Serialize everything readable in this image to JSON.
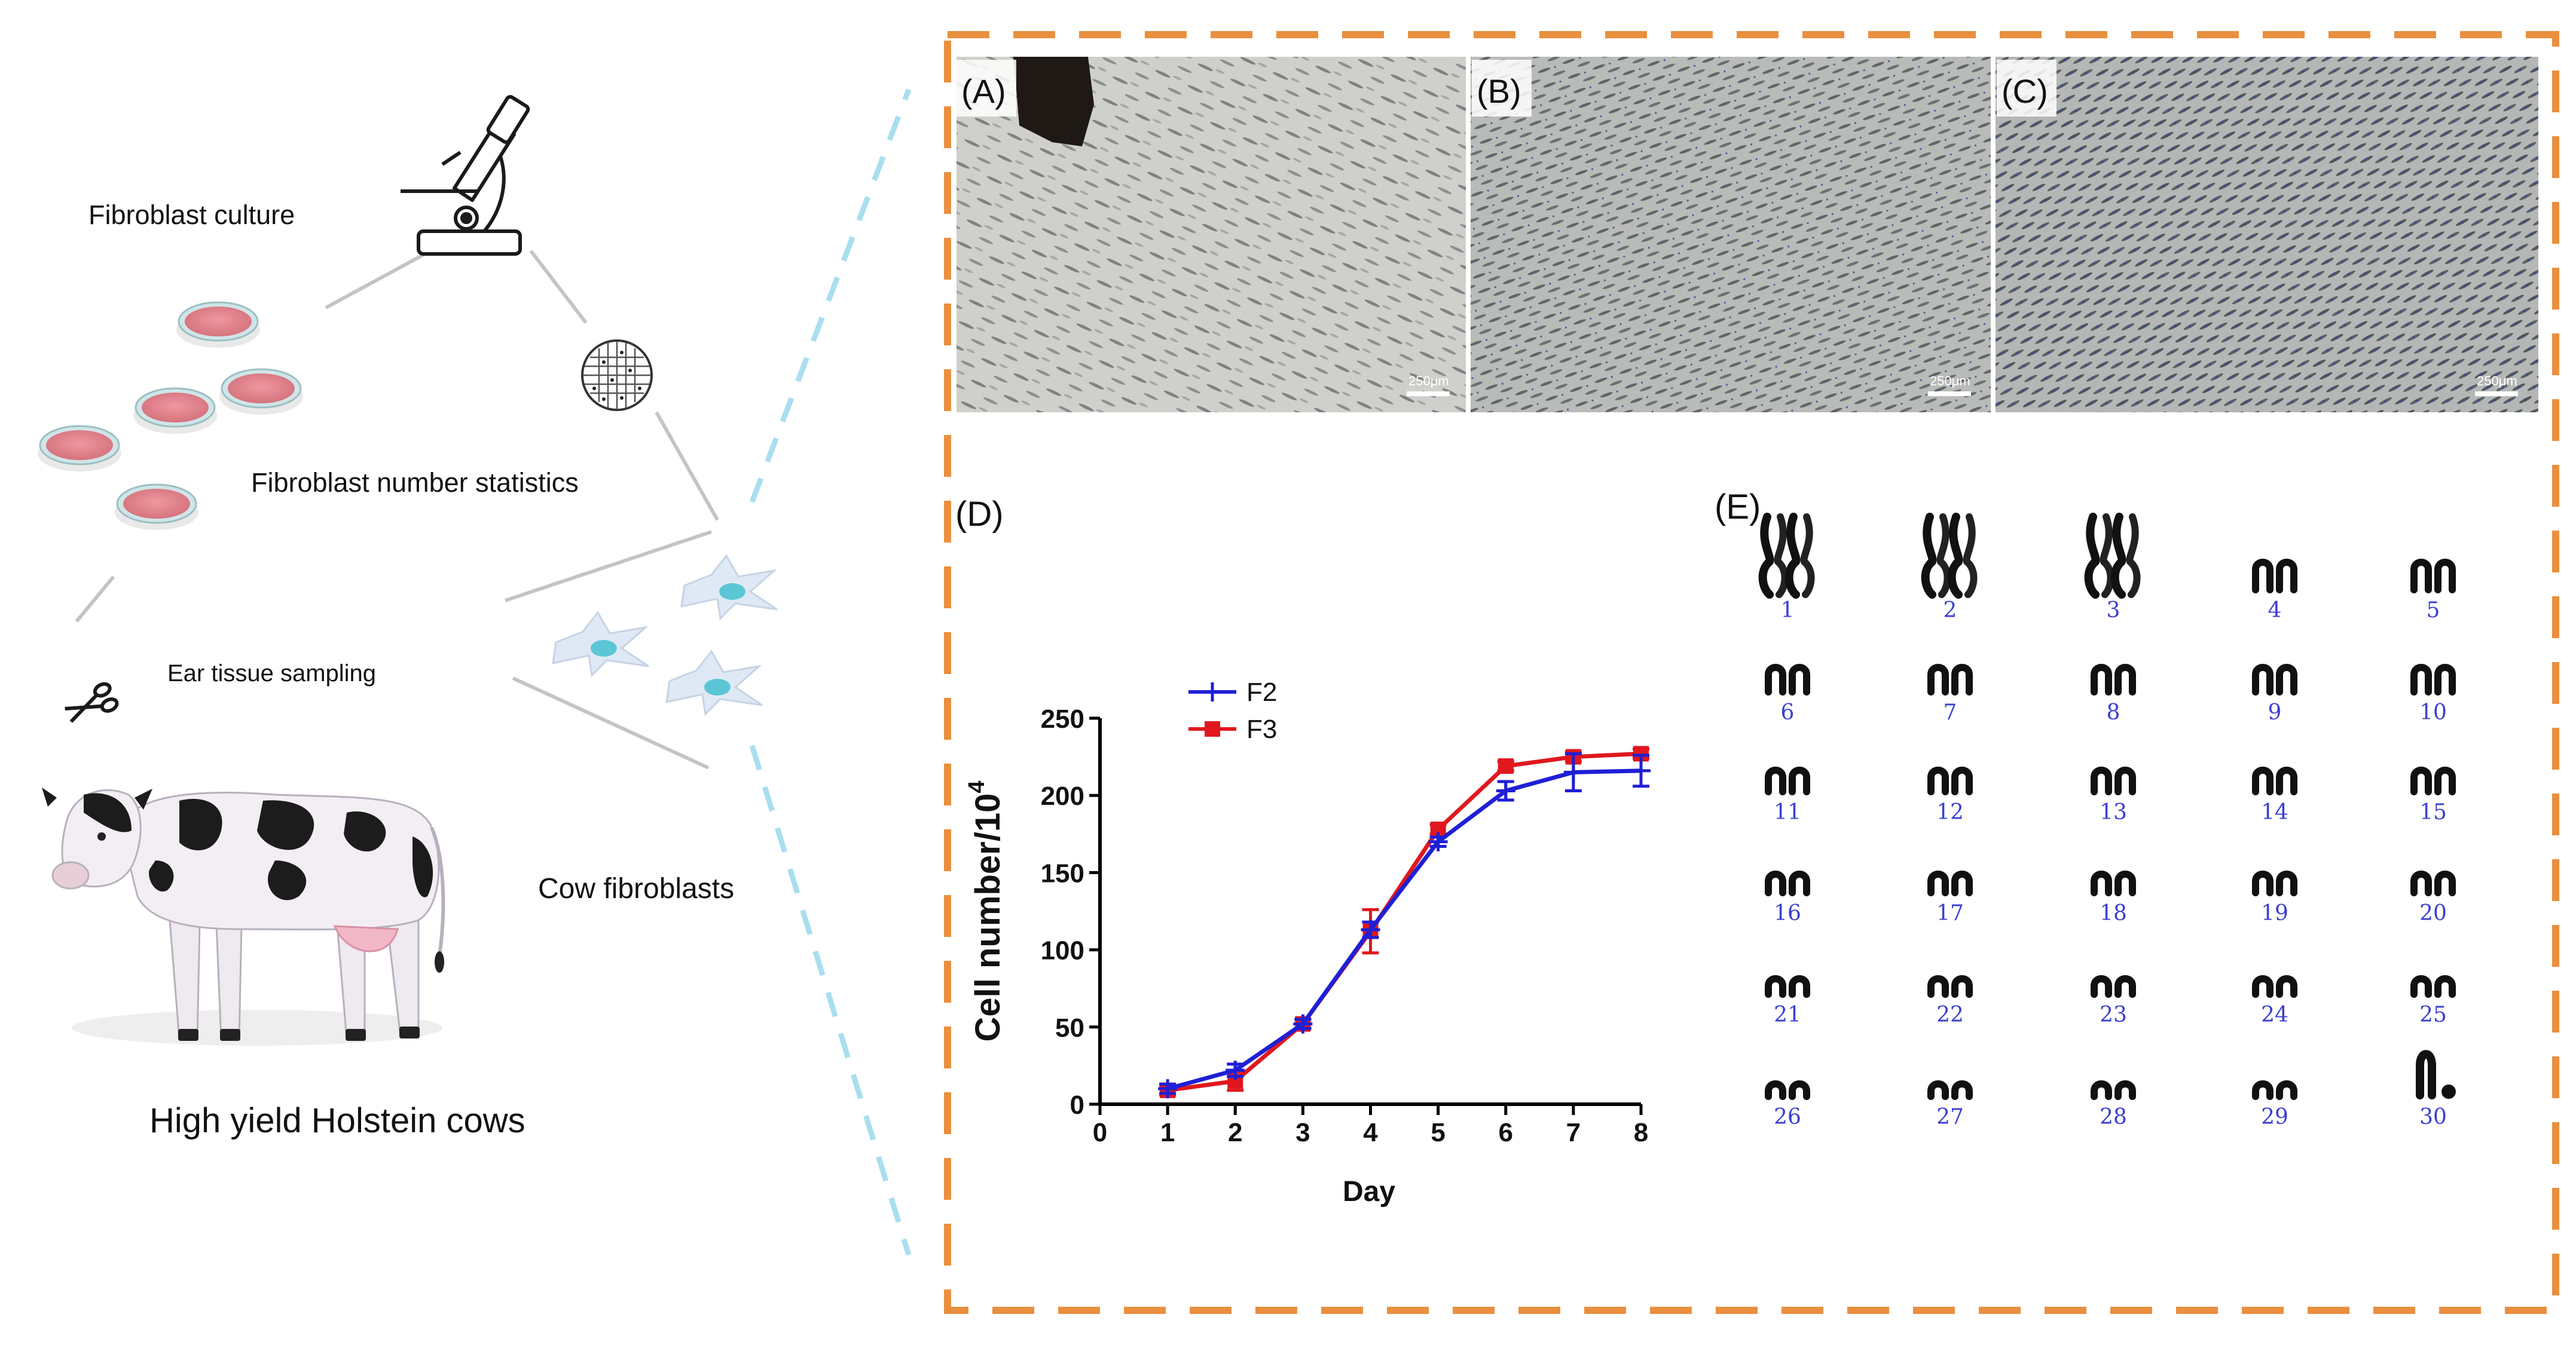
{
  "left_panel": {
    "fibroblast_culture": "Fibroblast culture",
    "fibroblast_number_statistics": "Fibroblast number statistics",
    "ear_tissue_sampling": "Ear tissue sampling",
    "cow_fibroblasts": "Cow fibroblasts",
    "high_yield_holstein_cows": "High yield Holstein cows",
    "icons": [
      "microscope-icon",
      "cell-counting-grid-icon",
      "petri-dish-icon",
      "scissors-icon",
      "cow-icon",
      "fibroblast-cell-icon"
    ],
    "colors": {
      "petri_dish_fill": "#e7858e",
      "fibroblast_fill": "#dfe9f5",
      "fibroblast_nucleus": "#5bc7d6"
    }
  },
  "right_panel": {
    "frame_color": "#e98f3f",
    "zoom_line_color": "#a9def0",
    "micrographs": [
      {
        "label": "(A)",
        "scale_bar": "250μm"
      },
      {
        "label": "(B)",
        "scale_bar": "250μm"
      },
      {
        "label": "(C)",
        "scale_bar": "250μm"
      }
    ],
    "panel_d_label": "(D)",
    "panel_e_label": "(E)",
    "karyotype": {
      "label_color": "#3a3fd0",
      "numbers": [
        "1",
        "2",
        "3",
        "4",
        "5",
        "6",
        "7",
        "8",
        "9",
        "10",
        "11",
        "12",
        "13",
        "14",
        "15",
        "16",
        "17",
        "18",
        "19",
        "20",
        "21",
        "22",
        "23",
        "24",
        "25",
        "26",
        "27",
        "28",
        "29",
        "30"
      ]
    }
  },
  "chart_data": {
    "type": "line",
    "xlabel": "Day",
    "ylabel": "Cell number/10⁴",
    "ylabel_base": "Cell number/10",
    "ylabel_exp": "4",
    "xlim": [
      0,
      8
    ],
    "ylim": [
      0,
      250
    ],
    "x_ticks": [
      0,
      1,
      2,
      3,
      4,
      5,
      6,
      7,
      8
    ],
    "y_ticks": [
      0,
      50,
      100,
      150,
      200,
      250
    ],
    "legend_placement": "top-left",
    "grid": false,
    "x": [
      1,
      2,
      3,
      4,
      5,
      6,
      7,
      8
    ],
    "series": [
      {
        "name": "F2",
        "color": "#1f1fd6",
        "marker": "plus",
        "values": [
          10,
          22,
          52,
          113,
          170,
          203,
          215,
          216
        ],
        "errors": [
          3,
          4,
          3,
          5,
          3,
          6,
          12,
          10
        ]
      },
      {
        "name": "F3",
        "color": "#e0181e",
        "marker": "square",
        "values": [
          9,
          15,
          52,
          112,
          178,
          219,
          225,
          227
        ],
        "errors": [
          3,
          6,
          3,
          14,
          3,
          3,
          3,
          3
        ]
      }
    ]
  }
}
